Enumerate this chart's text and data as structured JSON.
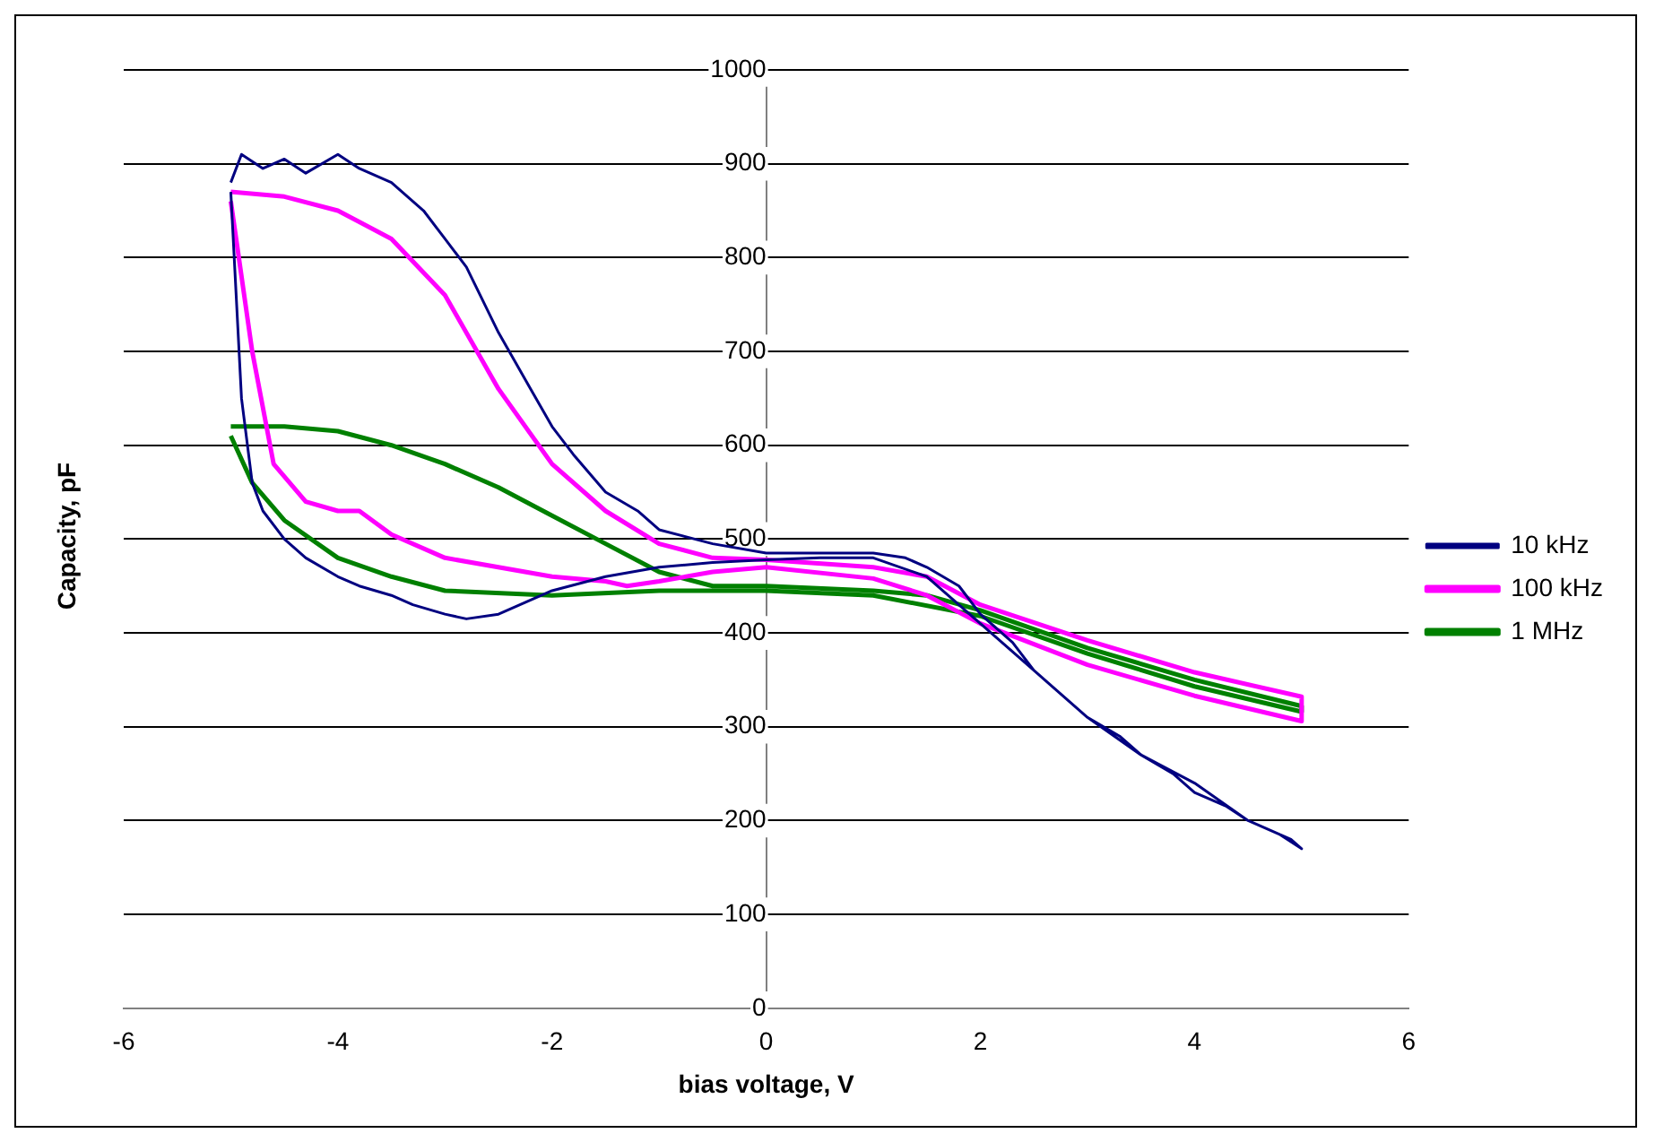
{
  "chart_data": {
    "type": "line",
    "xlabel": "bias voltage, V",
    "ylabel": "Capacity, pF",
    "xlim": [
      -6,
      6
    ],
    "xticks": [
      -6,
      -4,
      -2,
      0,
      2,
      4,
      6
    ],
    "ylim": [
      0,
      1000
    ],
    "yticks": [
      0,
      100,
      200,
      300,
      400,
      500,
      600,
      700,
      800,
      900,
      1000
    ],
    "grid": "y",
    "legend": "right",
    "marker": "none",
    "line_style": "solid",
    "series": [
      {
        "name": "10 kHz",
        "color": "#000080",
        "x": [
          -5,
          -4.9,
          -4.7,
          -4.5,
          -4.3,
          -4,
          -3.8,
          -3.5,
          -3.2,
          -3,
          -2.8,
          -2.5,
          -2.2,
          -2,
          -1.8,
          -1.5,
          -1.2,
          -1,
          -0.5,
          0,
          0.5,
          1,
          1.3,
          1.5,
          1.8,
          2,
          2.3,
          2.5,
          2.8,
          3,
          3.3,
          3.5,
          3.8,
          4,
          4.3,
          4.5,
          4.8,
          5,
          4.9,
          4.5,
          4,
          3.5,
          3,
          2.5,
          2,
          1.5,
          1,
          0.5,
          0,
          -0.5,
          -1,
          -1.5,
          -2,
          -2.3,
          -2.5,
          -2.8,
          -3,
          -3.3,
          -3.5,
          -3.8,
          -4,
          -4.3,
          -4.5,
          -4.7,
          -4.8,
          -4.9,
          -5
        ],
        "values": [
          880,
          910,
          895,
          905,
          890,
          910,
          895,
          880,
          850,
          820,
          790,
          720,
          660,
          620,
          590,
          550,
          530,
          510,
          495,
          485,
          485,
          485,
          480,
          470,
          450,
          420,
          390,
          360,
          330,
          310,
          290,
          270,
          250,
          230,
          215,
          200,
          185,
          170,
          180,
          200,
          240,
          270,
          310,
          360,
          410,
          460,
          480,
          480,
          478,
          475,
          470,
          460,
          445,
          430,
          420,
          415,
          420,
          430,
          440,
          450,
          460,
          480,
          500,
          530,
          560,
          650,
          870
        ]
      },
      {
        "name": "100 kHz",
        "color": "#ff00ff",
        "x": [
          -5,
          -4.5,
          -4,
          -3.5,
          -3,
          -2.5,
          -2,
          -1.5,
          -1,
          -0.5,
          0,
          1,
          1.5,
          2,
          3,
          4,
          5,
          5,
          4,
          3,
          2,
          1.5,
          1,
          0,
          -0.5,
          -1,
          -1.3,
          -1.5,
          -2,
          -3,
          -3.5,
          -3.8,
          -4,
          -4.3,
          -4.6,
          -4.8,
          -5
        ],
        "values": [
          870,
          865,
          850,
          820,
          760,
          660,
          580,
          530,
          495,
          480,
          478,
          470,
          460,
          430,
          392,
          358,
          332,
          306,
          333,
          366,
          410,
          440,
          458,
          470,
          465,
          455,
          450,
          455,
          460,
          480,
          505,
          530,
          530,
          540,
          580,
          700,
          860
        ]
      },
      {
        "name": "1 MHz",
        "color": "#008000",
        "x": [
          -5,
          -4.5,
          -4,
          -3.5,
          -3,
          -2.5,
          -2,
          -1.5,
          -1,
          -0.5,
          0,
          1,
          1.5,
          2,
          3,
          4,
          5,
          5,
          4,
          3,
          2,
          1,
          0,
          -1,
          -2,
          -3,
          -3.5,
          -4,
          -4.5,
          -4.8,
          -5
        ],
        "values": [
          620,
          620,
          615,
          600,
          580,
          555,
          525,
          495,
          465,
          450,
          450,
          445,
          440,
          424,
          384,
          350,
          322,
          316,
          343,
          378,
          418,
          440,
          445,
          445,
          440,
          445,
          460,
          480,
          520,
          560,
          610
        ]
      }
    ]
  }
}
